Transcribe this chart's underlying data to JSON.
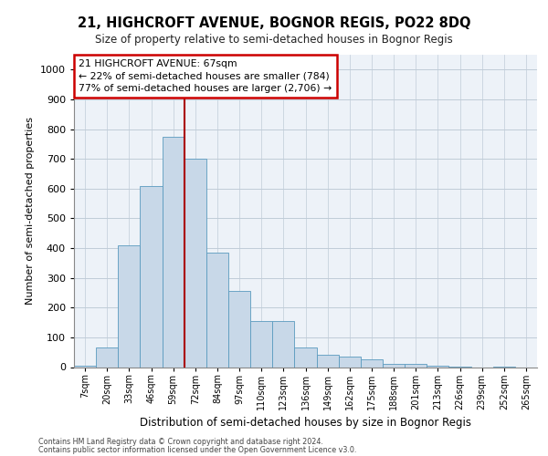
{
  "title1": "21, HIGHCROFT AVENUE, BOGNOR REGIS, PO22 8DQ",
  "title2": "Size of property relative to semi-detached houses in Bognor Regis",
  "xlabel": "Distribution of semi-detached houses by size in Bognor Regis",
  "ylabel": "Number of semi-detached properties",
  "footer1": "Contains HM Land Registry data © Crown copyright and database right 2024.",
  "footer2": "Contains public sector information licensed under the Open Government Licence v3.0.",
  "categories": [
    "7sqm",
    "20sqm",
    "33sqm",
    "46sqm",
    "59sqm",
    "72sqm",
    "84sqm",
    "97sqm",
    "110sqm",
    "123sqm",
    "136sqm",
    "149sqm",
    "162sqm",
    "175sqm",
    "188sqm",
    "201sqm",
    "213sqm",
    "226sqm",
    "239sqm",
    "252sqm",
    "265sqm"
  ],
  "values": [
    5,
    65,
    410,
    610,
    775,
    700,
    385,
    255,
    155,
    155,
    65,
    40,
    35,
    25,
    12,
    12,
    5,
    2,
    0,
    3,
    0
  ],
  "bar_color": "#c8d8e8",
  "bar_edge_color": "#5a9abf",
  "vline_color": "#aa0000",
  "annotation_text": "21 HIGHCROFT AVENUE: 67sqm\n← 22% of semi-detached houses are smaller (784)\n77% of semi-detached houses are larger (2,706) →",
  "annotation_box_color": "#ffffff",
  "annotation_box_edge": "#cc0000",
  "ylim": [
    0,
    1050
  ],
  "yticks": [
    0,
    100,
    200,
    300,
    400,
    500,
    600,
    700,
    800,
    900,
    1000
  ],
  "grid_color": "#c0ccd8",
  "bg_color": "#edf2f8"
}
